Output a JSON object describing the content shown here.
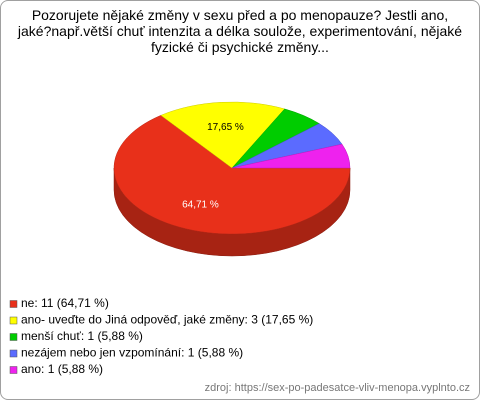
{
  "chart_data": {
    "type": "pie",
    "title": "Pozorujete nějaké změny v sexu před a po menopauze? Jestli ano, jaké?např.větší chuť intenzita a délka soulože, experimentování, nějaké fyzické či psychické změny...",
    "categories": [
      "ne: 11 (64,71 %)",
      "ano- uveďte do Jiná odpověď, jaké změny: 3 (17,65 %)",
      "menší chuť: 1 (5,88 %)",
      "nezájem nebo jen vzpomínání: 1 (5,88 %)",
      "ano: 1 (5,88 %)"
    ],
    "values": [
      64.71,
      17.65,
      5.88,
      5.88,
      5.88
    ],
    "value_labels": [
      "64,71 %",
      "17,65 %",
      null,
      null,
      null
    ],
    "colors": [
      "#e8301a",
      "#ffff00",
      "#00cc00",
      "#5b6bff",
      "#ee22ee"
    ],
    "legend": "bottom-left",
    "source": "zdroj: https://sex-po-padesatce-vliv-menopa.vyplnto.cz"
  }
}
